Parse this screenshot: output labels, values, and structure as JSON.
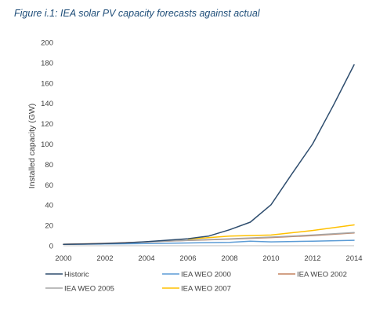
{
  "figure": {
    "title": "Figure i.1: IEA solar PV capacity forecasts against actual"
  },
  "chart_data": {
    "type": "line",
    "title": "Figure i.1: IEA solar PV capacity forecasts against actual",
    "xlabel": "",
    "ylabel": "Installed capacity (GW)",
    "xlim": [
      2000,
      2014
    ],
    "ylim": [
      0,
      200
    ],
    "x_ticks": [
      "2000",
      "2002",
      "2004",
      "2006",
      "2008",
      "2010",
      "2012",
      "2014"
    ],
    "y_ticks": [
      "0",
      "20",
      "40",
      "60",
      "80",
      "100",
      "120",
      "140",
      "160",
      "180",
      "200"
    ],
    "grid": false,
    "legend_position": "bottom",
    "series": [
      {
        "name": "Historic",
        "color": "#2E4D6E",
        "x": [
          2000,
          2001,
          2002,
          2003,
          2004,
          2005,
          2006,
          2007,
          2008,
          2009,
          2010,
          2011,
          2012,
          2013,
          2014
        ],
        "y": [
          1.3,
          1.6,
          2.1,
          2.8,
          3.9,
          5.4,
          6.9,
          9.5,
          15.7,
          23.2,
          40.3,
          70.5,
          100,
          138,
          178
        ]
      },
      {
        "name": "IEA WEO 2000",
        "color": "#5B9BD5",
        "x": [
          2000,
          2002,
          2004,
          2006,
          2008,
          2009,
          2010,
          2012,
          2014
        ],
        "y": [
          1.3,
          1.7,
          2.2,
          2.7,
          3.3,
          4.5,
          3.8,
          4.5,
          5.3
        ]
      },
      {
        "name": "IEA WEO 2002",
        "color": "#C4825E",
        "x": [
          2000,
          2002,
          2004,
          2006,
          2008,
          2010,
          2012,
          2014
        ],
        "y": [
          1.5,
          2.3,
          3.8,
          5.2,
          6.5,
          8.0,
          10.0,
          12.5
        ]
      },
      {
        "name": "IEA WEO 2005",
        "color": "#A6A6A6",
        "x": [
          2004,
          2006,
          2008,
          2010,
          2012,
          2014
        ],
        "y": [
          3.9,
          5.3,
          6.8,
          8.5,
          10.5,
          13.0
        ]
      },
      {
        "name": "IEA WEO 2007",
        "color": "#FFC000",
        "x": [
          2006,
          2008,
          2010,
          2012,
          2014
        ],
        "y": [
          6.5,
          9.5,
          10.5,
          15.0,
          20.5
        ]
      }
    ]
  }
}
